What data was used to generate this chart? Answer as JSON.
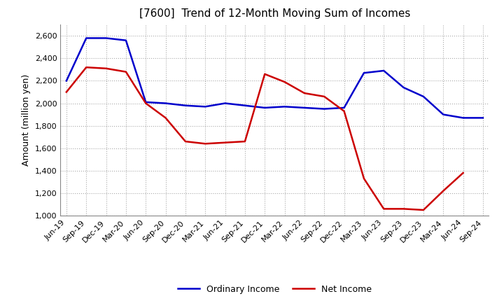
{
  "title": "[7600]  Trend of 12-Month Moving Sum of Incomes",
  "ylabel": "Amount (million yen)",
  "ylim": [
    1000,
    2700
  ],
  "yticks": [
    1000,
    1200,
    1400,
    1600,
    1800,
    2000,
    2200,
    2400,
    2600
  ],
  "x_labels": [
    "Jun-19",
    "Sep-19",
    "Dec-19",
    "Mar-20",
    "Jun-20",
    "Sep-20",
    "Dec-20",
    "Mar-21",
    "Jun-21",
    "Sep-21",
    "Dec-21",
    "Mar-22",
    "Jun-22",
    "Sep-22",
    "Dec-22",
    "Mar-23",
    "Jun-23",
    "Sep-23",
    "Dec-23",
    "Mar-24",
    "Jun-24",
    "Sep-24"
  ],
  "ordinary_income": [
    2200,
    2580,
    2580,
    2560,
    2010,
    2000,
    1980,
    1970,
    2000,
    1980,
    1960,
    1970,
    1960,
    1950,
    1960,
    2270,
    2290,
    2140,
    2060,
    1900,
    1870,
    1870
  ],
  "net_income": [
    2100,
    2320,
    2310,
    2280,
    2000,
    1870,
    1660,
    1640,
    1650,
    1660,
    2260,
    2190,
    2090,
    2060,
    1930,
    1330,
    1060,
    1060,
    1050,
    1220,
    1380,
    null
  ],
  "ordinary_color": "#0000cc",
  "net_color": "#cc0000",
  "background_color": "#ffffff",
  "plot_bg_color": "#ffffff",
  "grid_color": "#aaaaaa",
  "title_fontsize": 11,
  "legend_fontsize": 9,
  "axis_fontsize": 8
}
